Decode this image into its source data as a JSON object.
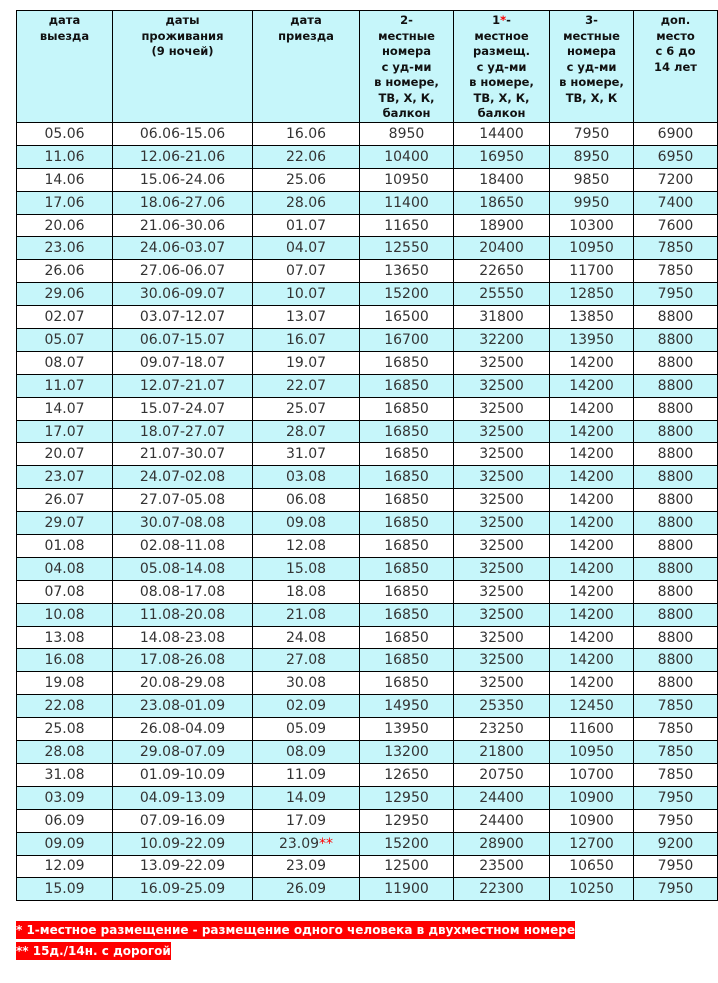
{
  "headers": [
    "дата выезда",
    "даты проживания (9 ночей)",
    "дата приезда",
    "2-местные номера с уд-ми в номере, ТВ, Х, К, балкон",
    "1*-местное размещ. с уд-ми в номере, ТВ, Х, К, балкон",
    "3-местные номера с уд-ми в номере, ТВ, Х, К",
    "доп. место с 6 до 14 лет"
  ],
  "header_lines": [
    [
      "дата",
      "выезда"
    ],
    [
      "даты",
      "проживания",
      "(9 ночей)"
    ],
    [
      "дата",
      "приезда"
    ],
    [
      "2-",
      "местные",
      "номера",
      "с уд-ми",
      "в номере,",
      "ТВ, Х, К,",
      "балкон"
    ],
    [
      "1",
      "*",
      "-",
      "местное",
      "размещ.",
      "с уд-ми",
      "в номере,",
      "ТВ, Х, К,",
      "балкон"
    ],
    [
      "3-",
      "местные",
      "номера",
      "с уд-ми",
      "в номере,",
      "ТВ, Х, К"
    ],
    [
      "доп.",
      "место",
      "с 6 до",
      "14 лет"
    ]
  ],
  "rows": [
    [
      "05.06",
      "06.06-15.06",
      "16.06",
      "8950",
      "14400",
      "7950",
      "6900"
    ],
    [
      "11.06",
      "12.06-21.06",
      "22.06",
      "10400",
      "16950",
      "8950",
      "6950"
    ],
    [
      "14.06",
      "15.06-24.06",
      "25.06",
      "10950",
      "18400",
      "9850",
      "7200"
    ],
    [
      "17.06",
      "18.06-27.06",
      "28.06",
      "11400",
      "18650",
      "9950",
      "7400"
    ],
    [
      "20.06",
      "21.06-30.06",
      "01.07",
      "11650",
      "18900",
      "10300",
      "7600"
    ],
    [
      "23.06",
      "24.06-03.07",
      "04.07",
      "12550",
      "20400",
      "10950",
      "7850"
    ],
    [
      "26.06",
      "27.06-06.07",
      "07.07",
      "13650",
      "22650",
      "11700",
      "7850"
    ],
    [
      "29.06",
      "30.06-09.07",
      "10.07",
      "15200",
      "25550",
      "12850",
      "7950"
    ],
    [
      "02.07",
      "03.07-12.07",
      "13.07",
      "16500",
      "31800",
      "13850",
      "8800"
    ],
    [
      "05.07",
      "06.07-15.07",
      "16.07",
      "16700",
      "32200",
      "13950",
      "8800"
    ],
    [
      "08.07",
      "09.07-18.07",
      "19.07",
      "16850",
      "32500",
      "14200",
      "8800"
    ],
    [
      "11.07",
      "12.07-21.07",
      "22.07",
      "16850",
      "32500",
      "14200",
      "8800"
    ],
    [
      "14.07",
      "15.07-24.07",
      "25.07",
      "16850",
      "32500",
      "14200",
      "8800"
    ],
    [
      "17.07",
      "18.07-27.07",
      "28.07",
      "16850",
      "32500",
      "14200",
      "8800"
    ],
    [
      "20.07",
      "21.07-30.07",
      "31.07",
      "16850",
      "32500",
      "14200",
      "8800"
    ],
    [
      "23.07",
      "24.07-02.08",
      "03.08",
      "16850",
      "32500",
      "14200",
      "8800"
    ],
    [
      "26.07",
      "27.07-05.08",
      "06.08",
      "16850",
      "32500",
      "14200",
      "8800"
    ],
    [
      "29.07",
      "30.07-08.08",
      "09.08",
      "16850",
      "32500",
      "14200",
      "8800"
    ],
    [
      "01.08",
      "02.08-11.08",
      "12.08",
      "16850",
      "32500",
      "14200",
      "8800"
    ],
    [
      "04.08",
      "05.08-14.08",
      "15.08",
      "16850",
      "32500",
      "14200",
      "8800"
    ],
    [
      "07.08",
      "08.08-17.08",
      "18.08",
      "16850",
      "32500",
      "14200",
      "8800"
    ],
    [
      "10.08",
      "11.08-20.08",
      "21.08",
      "16850",
      "32500",
      "14200",
      "8800"
    ],
    [
      "13.08",
      "14.08-23.08",
      "24.08",
      "16850",
      "32500",
      "14200",
      "8800"
    ],
    [
      "16.08",
      "17.08-26.08",
      "27.08",
      "16850",
      "32500",
      "14200",
      "8800"
    ],
    [
      "19.08",
      "20.08-29.08",
      "30.08",
      "16850",
      "32500",
      "14200",
      "8800"
    ],
    [
      "22.08",
      "23.08-01.09",
      "02.09",
      "14950",
      "25350",
      "12450",
      "7850"
    ],
    [
      "25.08",
      "26.08-04.09",
      "05.09",
      "13950",
      "23250",
      "11600",
      "7850"
    ],
    [
      "28.08",
      "29.08-07.09",
      "08.09",
      "13200",
      "21800",
      "10950",
      "7850"
    ],
    [
      "31.08",
      "01.09-10.09",
      "11.09",
      "12650",
      "20750",
      "10700",
      "7850"
    ],
    [
      "03.09",
      "04.09-13.09",
      "14.09",
      "12950",
      "24400",
      "10900",
      "7950"
    ],
    [
      "06.09",
      "07.09-16.09",
      "17.09",
      "12950",
      "24400",
      "10900",
      "7950"
    ],
    [
      "09.09",
      "10.09-22.09",
      "23.09**",
      "15200",
      "28900",
      "12700",
      "9200"
    ],
    [
      "12.09",
      "13.09-22.09",
      "23.09",
      "12500",
      "23500",
      "10650",
      "7950"
    ],
    [
      "15.09",
      "16.09-25.09",
      "26.09",
      "11900",
      "22300",
      "10250",
      "7950"
    ]
  ],
  "notes": [
    "* 1-местное размещение - размещение одного человека в двухместном номере",
    "** 15д./14н. с дорогой"
  ],
  "colors": {
    "row_alt": "#c6f6fa",
    "note_bg": "#ff0000",
    "asterisk": "#ff0000"
  }
}
